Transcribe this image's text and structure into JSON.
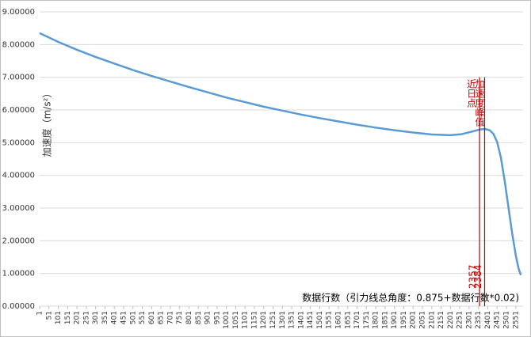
{
  "chart_data": {
    "type": "line",
    "y_label": "加速度（m/s²）",
    "x_label": "数据行数（引力线总角度：0.875+数据行数*0.02)",
    "color": "#5b9bd5",
    "x": [
      1,
      101,
      201,
      301,
      401,
      501,
      601,
      701,
      801,
      901,
      1001,
      1101,
      1201,
      1301,
      1401,
      1501,
      1601,
      1701,
      1801,
      1901,
      2001,
      2101,
      2201,
      2261,
      2311,
      2357,
      2384,
      2411,
      2431,
      2451,
      2471,
      2491,
      2511,
      2531,
      2551,
      2566,
      2578
    ],
    "values": [
      8.35,
      8.08,
      7.84,
      7.62,
      7.42,
      7.22,
      7.04,
      6.87,
      6.7,
      6.54,
      6.38,
      6.24,
      6.1,
      5.98,
      5.86,
      5.75,
      5.65,
      5.55,
      5.46,
      5.38,
      5.31,
      5.25,
      5.23,
      5.26,
      5.33,
      5.4,
      5.42,
      5.38,
      5.27,
      5.02,
      4.55,
      3.85,
      3.05,
      2.25,
      1.55,
      1.15,
      0.95
    ],
    "xlim": [
      1,
      2590
    ],
    "xticks": [
      1,
      51,
      101,
      151,
      201,
      251,
      301,
      351,
      401,
      451,
      501,
      551,
      601,
      651,
      701,
      751,
      801,
      851,
      901,
      951,
      1001,
      1051,
      1101,
      1151,
      1201,
      1251,
      1301,
      1351,
      1401,
      1451,
      1501,
      1551,
      1601,
      1651,
      1701,
      1751,
      1801,
      1851,
      1901,
      1951,
      2001,
      2051,
      2101,
      2151,
      2201,
      2251,
      2301,
      2351,
      2401,
      2451,
      2501,
      2551
    ],
    "ylim": [
      0,
      9
    ],
    "yticks": [
      {
        "value": 0,
        "label": "0.00000"
      },
      {
        "value": 1,
        "label": "1.00000"
      },
      {
        "value": 2,
        "label": "2.00000"
      },
      {
        "value": 3,
        "label": "3.00000"
      },
      {
        "value": 4,
        "label": "4.00000"
      },
      {
        "value": 5,
        "label": "5.00000"
      },
      {
        "value": 6,
        "label": "6.00000"
      },
      {
        "value": 7,
        "label": "7.00000"
      },
      {
        "value": 8,
        "label": "8.00000"
      },
      {
        "value": 9,
        "label": "9.00000"
      }
    ],
    "grid": true,
    "vlines": [
      {
        "x": 2357,
        "text": "近日点",
        "color": "#c00000"
      },
      {
        "x": 2384,
        "text": "加速度峰值",
        "color": "#c00000"
      }
    ]
  }
}
